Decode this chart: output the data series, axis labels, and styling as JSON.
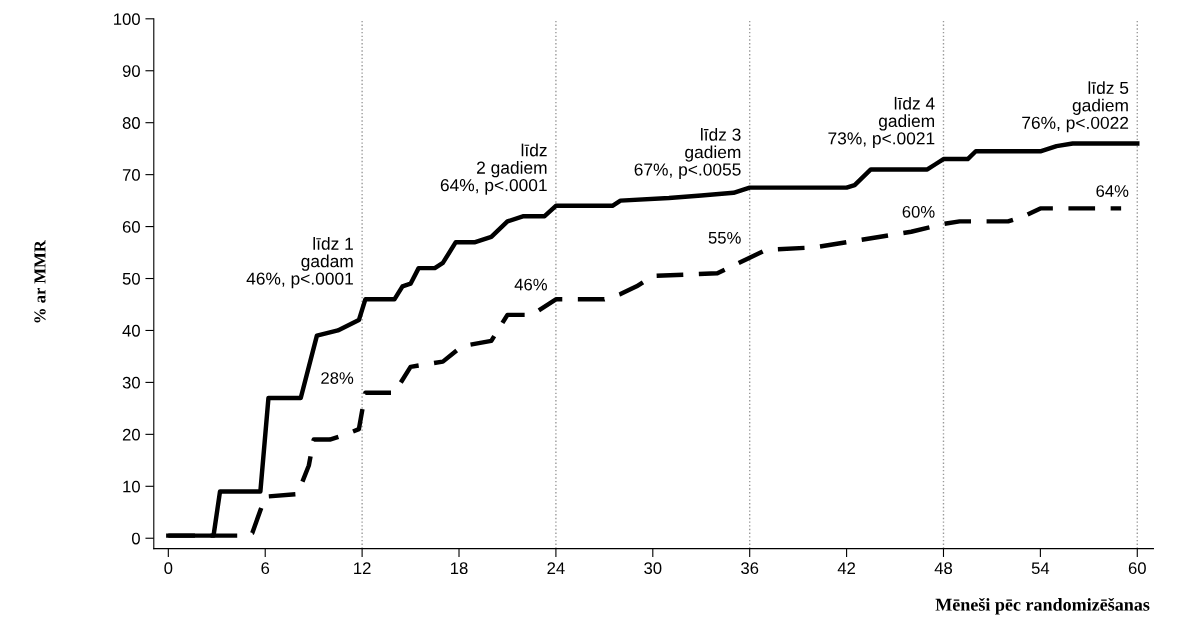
{
  "chart_data": {
    "type": "line",
    "xlabel": "Mēneši pēc randomizēšanas",
    "ylabel": "% ar MMR",
    "xlim": [
      -0.9,
      61
    ],
    "ylim": [
      -2,
      100
    ],
    "xticks": [
      0,
      6,
      12,
      18,
      24,
      30,
      36,
      42,
      48,
      54,
      60
    ],
    "yticks": [
      0,
      10,
      20,
      30,
      40,
      50,
      60,
      70,
      80,
      90,
      100
    ],
    "grid": false,
    "legend": false,
    "marker": "none",
    "series": [
      {
        "color": "#000000",
        "line_style": "solid",
        "x": [
          0,
          2.8,
          3.2,
          5.7,
          6.2,
          8.2,
          9.2,
          10.5,
          11.8,
          12.2,
          14,
          14.5,
          15,
          15.5,
          16.5,
          17,
          17.8,
          19,
          20,
          21,
          22,
          23.3,
          24,
          27.5,
          28,
          31,
          33,
          35,
          36,
          42,
          42.5,
          43.5,
          47,
          47.5,
          48,
          49.5,
          50,
          54,
          55,
          56,
          60
        ],
        "values": [
          0.5,
          0.5,
          9,
          9,
          27,
          27,
          39,
          40,
          42,
          46,
          46,
          48.5,
          49,
          52,
          52,
          53,
          57,
          57,
          58,
          61,
          62,
          62,
          64,
          64,
          65,
          65.5,
          66,
          66.5,
          67.5,
          67.5,
          68,
          71,
          71,
          72,
          73,
          73,
          74.5,
          74.5,
          75.5,
          76,
          76
        ]
      },
      {
        "color": "#000000",
        "line_style": "dashed",
        "x": [
          0,
          4.8,
          5.2,
          6,
          8,
          8.7,
          9,
          10,
          11,
          11.8,
          12.2,
          14,
          15,
          17,
          18.2,
          20,
          21,
          22.5,
          24,
          27,
          28,
          29,
          30,
          34,
          35,
          36,
          37,
          40,
          42,
          44,
          46,
          48,
          49,
          52,
          53,
          54,
          59
        ],
        "values": [
          0.5,
          0.5,
          1,
          8,
          8.5,
          14,
          19,
          19,
          20,
          21,
          28,
          28,
          33,
          34,
          37,
          38,
          43,
          43,
          46,
          46,
          47,
          48.5,
          50.5,
          51,
          52.5,
          54,
          55.5,
          56,
          57,
          58,
          59,
          60.5,
          61,
          61,
          62,
          63.5,
          63.5
        ]
      }
    ],
    "ref_lines": [
      {
        "axis": "x",
        "value": 12,
        "color": "#999999",
        "line_style": "dotted"
      },
      {
        "axis": "x",
        "value": 24,
        "color": "#999999",
        "line_style": "dotted"
      },
      {
        "axis": "x",
        "value": 36,
        "color": "#999999",
        "line_style": "dotted"
      },
      {
        "axis": "x",
        "value": 48,
        "color": "#999999",
        "line_style": "dotted"
      },
      {
        "axis": "x",
        "value": 60,
        "color": "#999999",
        "line_style": "dotted"
      }
    ],
    "annotations": [
      {
        "text": "līdz 1\ngadam\n46%, p<.0001",
        "x": 12,
        "y": 46
      },
      {
        "text": "līdz\n2 gadiem\n64%, p<.0001",
        "x": 24,
        "y": 64
      },
      {
        "text": "līdz 3\ngadiem\n67%, p<.0055",
        "x": 36,
        "y": 67
      },
      {
        "text": "līdz 4\ngadiem\n73%, p<.0021",
        "x": 48,
        "y": 73
      },
      {
        "text": "līdz 5\ngadiem\n76%, p<.0022",
        "x": 60,
        "y": 76
      },
      {
        "text": "28%",
        "x": 12,
        "y": 28
      },
      {
        "text": "46%",
        "x": 24,
        "y": 46
      },
      {
        "text": "55%",
        "x": 36,
        "y": 55
      },
      {
        "text": "60%",
        "x": 48,
        "y": 60
      },
      {
        "text": "64%",
        "x": 60,
        "y": 64
      }
    ]
  }
}
